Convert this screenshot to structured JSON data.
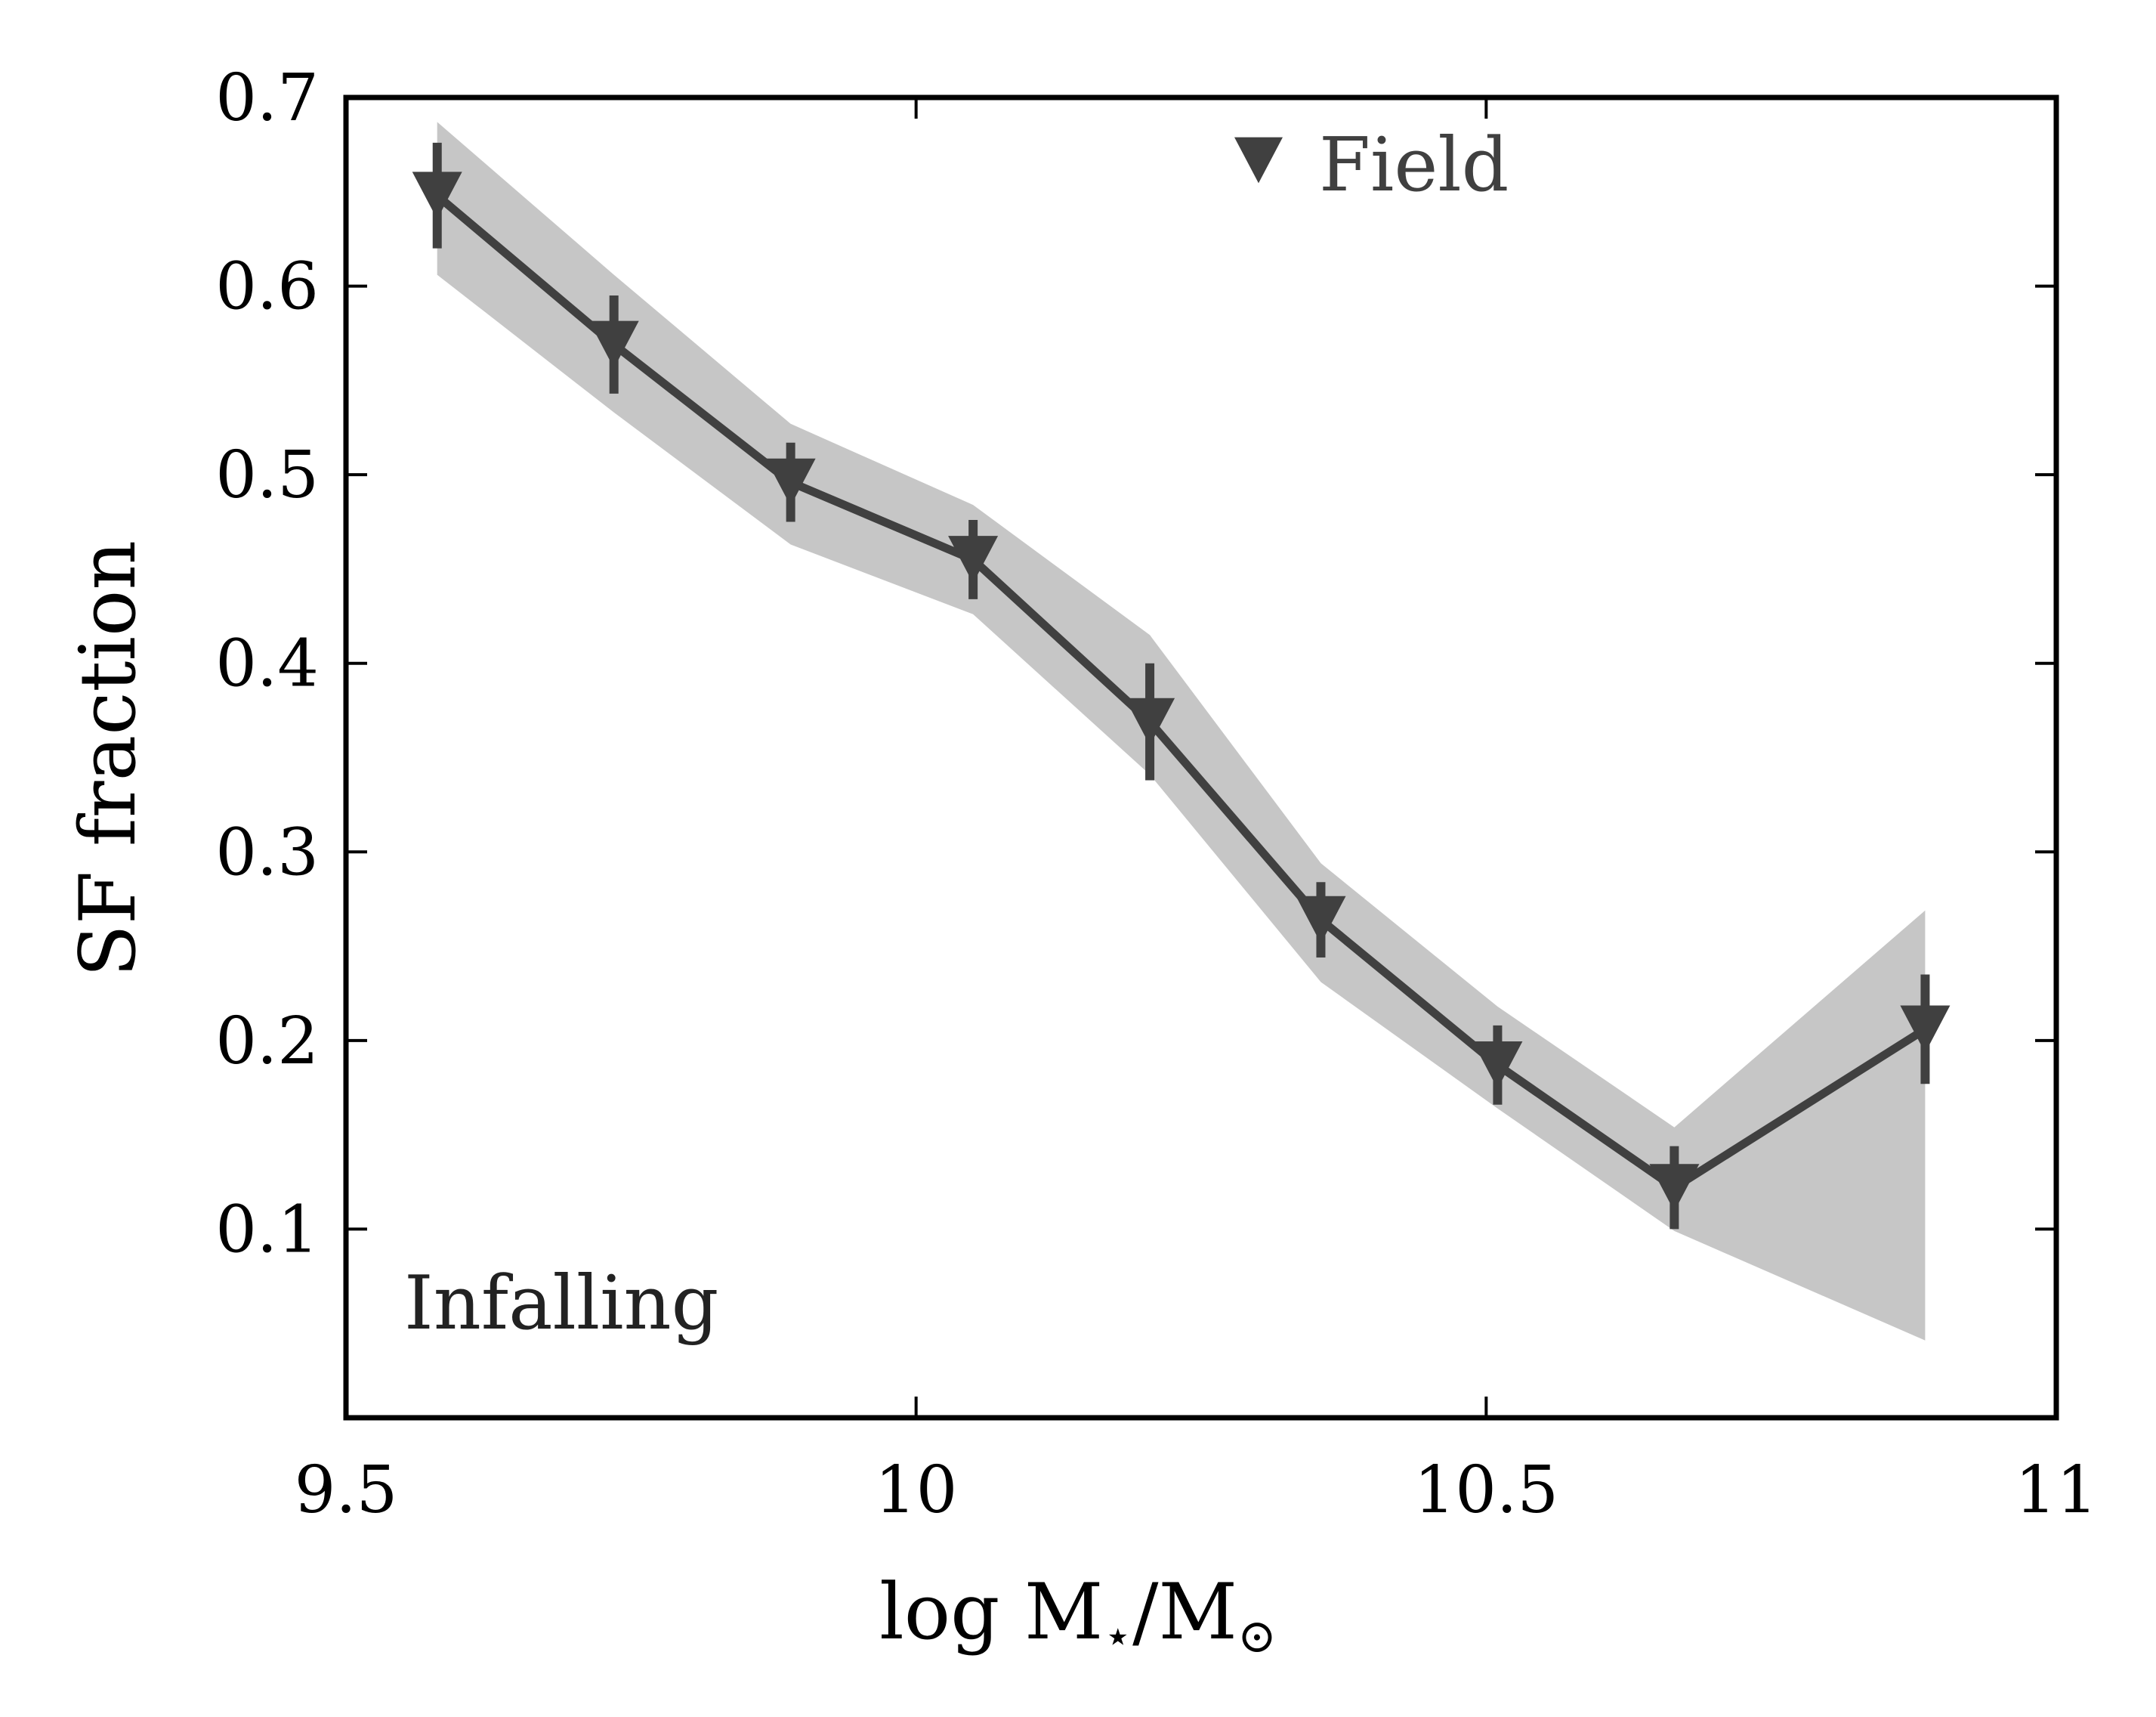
{
  "chart_data": {
    "type": "line",
    "xlabel_parts": {
      "main": "log M",
      "sub1": "⋆",
      "slash": "/M",
      "sub2": "⊙"
    },
    "ylabel": "SF fraction",
    "xlim": [
      9.5,
      11
    ],
    "ylim": [
      0,
      0.7
    ],
    "xticks": [
      9.5,
      10,
      10.5,
      11
    ],
    "xtick_labels": [
      "9.5",
      "10",
      "10.5",
      "11"
    ],
    "yticks": [
      0.1,
      0.2,
      0.3,
      0.4,
      0.5,
      0.6,
      0.7
    ],
    "ytick_labels": [
      "0.1",
      "0.2",
      "0.3",
      "0.4",
      "0.5",
      "0.6",
      "0.7"
    ],
    "grid": false,
    "annotation": "Infalling",
    "legend": {
      "placement": "top-center",
      "entries": [
        {
          "label": "Field",
          "marker": "triangle-down",
          "color": "#404040"
        }
      ]
    },
    "series": [
      {
        "name": "Field",
        "marker": "triangle-down",
        "color": "#404040",
        "x": [
          9.58,
          9.735,
          9.89,
          10.05,
          10.205,
          10.355,
          10.51,
          10.665,
          10.885
        ],
        "y": [
          0.648,
          0.569,
          0.496,
          0.455,
          0.369,
          0.264,
          0.187,
          0.122,
          0.206
        ],
        "yerr": [
          0.028,
          0.026,
          0.021,
          0.021,
          0.031,
          0.02,
          0.021,
          0.022,
          0.029
        ]
      }
    ],
    "band": {
      "color": "#c6c6c6",
      "x": [
        9.58,
        9.735,
        9.89,
        10.05,
        10.205,
        10.355,
        10.51,
        10.665,
        10.885
      ],
      "lower": [
        0.606,
        0.533,
        0.463,
        0.426,
        0.341,
        0.231,
        0.164,
        0.099,
        0.041
      ],
      "upper": [
        0.687,
        0.606,
        0.527,
        0.484,
        0.415,
        0.294,
        0.218,
        0.154,
        0.269
      ]
    }
  }
}
